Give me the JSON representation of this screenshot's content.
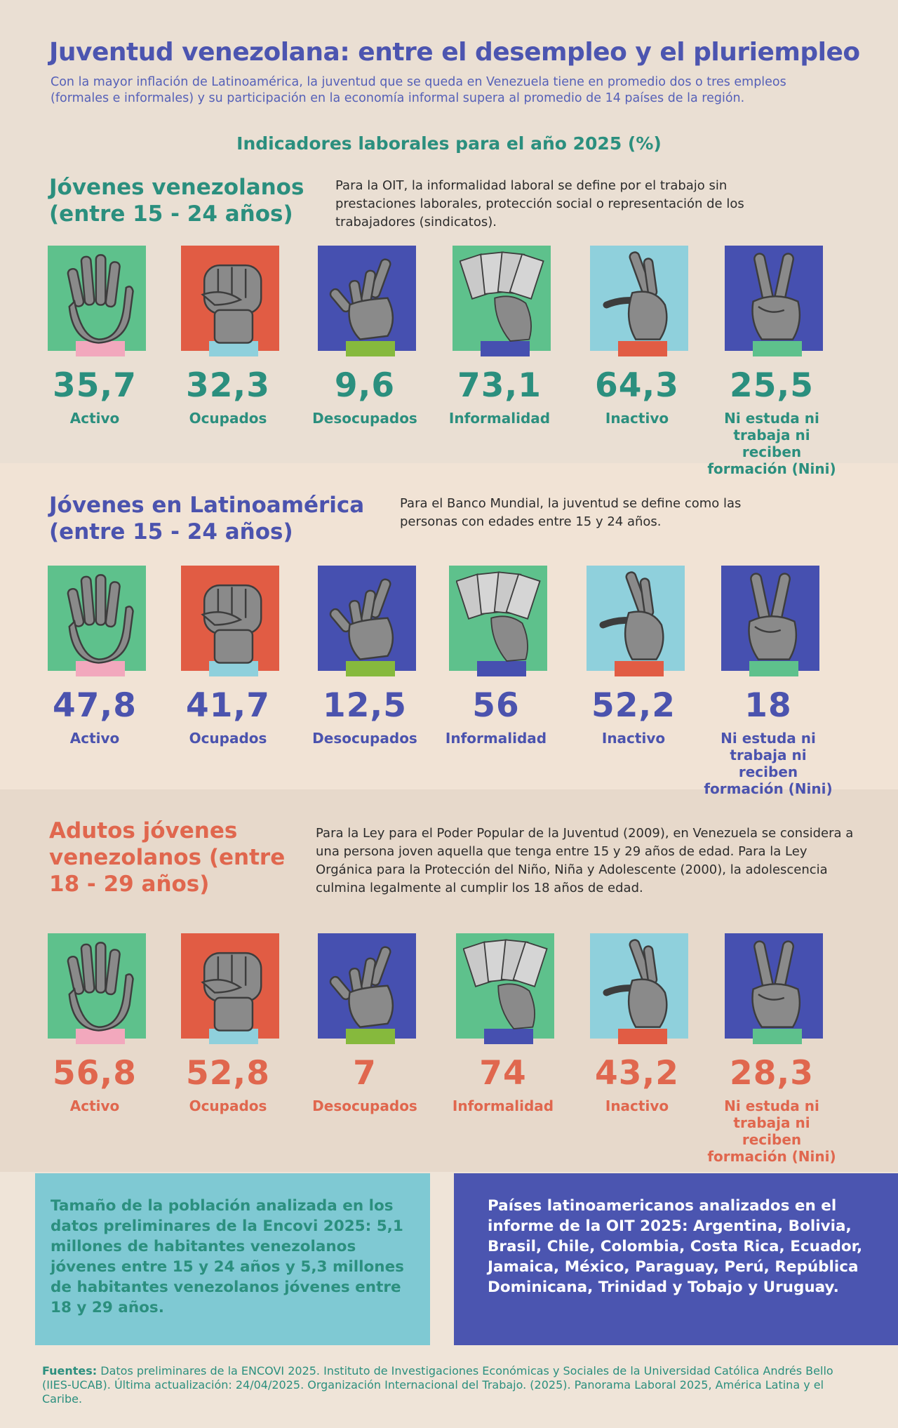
{
  "header": {
    "title": "Juventud venezolana: entre el desempleo y el pluriempleo",
    "subtitle": "Con la mayor inflación de Latinoamérica, la juventud que se queda en Venezuela tiene en promedio dos o tres empleos (formales e informales) y su participación en la economía informal supera al promedio de 14 países de la región.",
    "indicators_title": "Indicadores laborales para el año 2025 (%)"
  },
  "sections": [
    {
      "title_line1": "Jóvenes venezolanos",
      "title_line2": "(entre 15 - 24 años)",
      "title_line3": "",
      "color": "#2b8f7e",
      "note": "Para la OIT, la informalidad laboral se define por el trabajo sin prestaciones laborales, protección social o representación de los trabajadores (sindicatos).",
      "cards": [
        {
          "value": "35,7",
          "label": "Activo",
          "tile": "#5ec18c",
          "cuff": "#f2a8bd",
          "icon": "open-hand-icon"
        },
        {
          "value": "32,3",
          "label": "Ocupados",
          "tile": "#e15c44",
          "cuff": "#8fd0dc",
          "icon": "fist-icon"
        },
        {
          "value": "9,6",
          "label": "Desocupados",
          "tile": "#4650b0",
          "cuff": "#86b93d",
          "icon": "reaching-hand-icon"
        },
        {
          "value": "73,1",
          "label": "Informalidad",
          "tile": "#5ec18c",
          "cuff": "#4650b0",
          "icon": "money-hand-icon"
        },
        {
          "value": "64,3",
          "label": "Inactivo",
          "tile": "#8fd0dc",
          "cuff": "#e15c44",
          "icon": "pinch-hand-icon"
        },
        {
          "value": "25,5",
          "label": "Ni estuda ni trabaja ni reciben formación (Nini)",
          "tile": "#4650b0",
          "cuff": "#5ec18c",
          "icon": "peace-hand-icon"
        }
      ]
    },
    {
      "title_line1": "Jóvenes en Latinoamérica",
      "title_line2": "(entre 15 - 24 años)",
      "title_line3": "",
      "color": "#4b53ae",
      "note": "Para el Banco Mundial, la juventud se define como las personas con edades entre 15 y 24 años.",
      "cards": [
        {
          "value": "47,8",
          "label": "Activo",
          "tile": "#5ec18c",
          "cuff": "#f2a8bd",
          "icon": "open-hand-icon"
        },
        {
          "value": "41,7",
          "label": "Ocupados",
          "tile": "#e15c44",
          "cuff": "#8fd0dc",
          "icon": "fist-icon"
        },
        {
          "value": "12,5",
          "label": "Desocupados",
          "tile": "#4650b0",
          "cuff": "#86b93d",
          "icon": "reaching-hand-icon"
        },
        {
          "value": "56",
          "label": "Informalidad",
          "tile": "#5ec18c",
          "cuff": "#4650b0",
          "icon": "money-hand-icon"
        },
        {
          "value": "52,2",
          "label": "Inactivo",
          "tile": "#8fd0dc",
          "cuff": "#e15c44",
          "icon": "pinch-hand-icon"
        },
        {
          "value": "18",
          "label": "Ni estuda ni trabaja ni reciben formación (Nini)",
          "tile": "#4650b0",
          "cuff": "#5ec18c",
          "icon": "peace-hand-icon"
        }
      ]
    },
    {
      "title_line1": "Adutos jóvenes",
      "title_line2": "venezolanos (entre",
      "title_line3": "18 - 29 años)",
      "color": "#e0674e",
      "note": "Para la Ley para el Poder Popular de la Juventud (2009), en Venezuela se considera a una persona joven aquella que tenga entre 15 y 29 años de edad. Para la Ley Orgánica para la Protección del Niño, Niña y Adolescente (2000), la adolescencia culmina legalmente al cumplir los 18 años de edad.",
      "cards": [
        {
          "value": "56,8",
          "label": "Activo",
          "tile": "#5ec18c",
          "cuff": "#f2a8bd",
          "icon": "open-hand-icon"
        },
        {
          "value": "52,8",
          "label": "Ocupados",
          "tile": "#e15c44",
          "cuff": "#8fd0dc",
          "icon": "fist-icon"
        },
        {
          "value": "7",
          "label": "Desocupados",
          "tile": "#4650b0",
          "cuff": "#86b93d",
          "icon": "reaching-hand-icon"
        },
        {
          "value": "74",
          "label": "Informalidad",
          "tile": "#5ec18c",
          "cuff": "#4650b0",
          "icon": "money-hand-icon"
        },
        {
          "value": "43,2",
          "label": "Inactivo",
          "tile": "#8fd0dc",
          "cuff": "#e15c44",
          "icon": "pinch-hand-icon"
        },
        {
          "value": "28,3",
          "label": "Ni estuda ni trabaja ni reciben formación (Nini)",
          "tile": "#4650b0",
          "cuff": "#5ec18c",
          "icon": "peace-hand-icon"
        }
      ]
    }
  ],
  "boxes": {
    "left_text": "Tamaño de la población analizada en los datos preliminares de la Encovi 2025: 5,1 millones de habitantes venezolanos jóvenes entre 15 y 24 años y 5,3 millones de habitantes venezolanos jóvenes entre 18 y 29 años.",
    "left_color": "#2b8f7e",
    "right_text": "Países latinoamericanos analizados en el informe de la OIT 2025: Argentina, Bolivia, Brasil, Chile, Colombia, Costa Rica, Ecuador, Jamaica, México, Paraguay, Perú, República Dominicana, Trinidad y Tobajo y Uruguay.",
    "right_color": "#ffffff"
  },
  "sources": {
    "label": "Fuentes:",
    "text": "Datos preliminares de la ENCOVI 2025. Instituto de Investigaciones Económicas y Sociales de la Universidad Católica Andrés Bello (IIES-UCAB). Última actualización: 24/04/2025. Organización Internacional del Trabajo. (2025). Panorama Laboral 2025, América Latina y el Caribe."
  }
}
